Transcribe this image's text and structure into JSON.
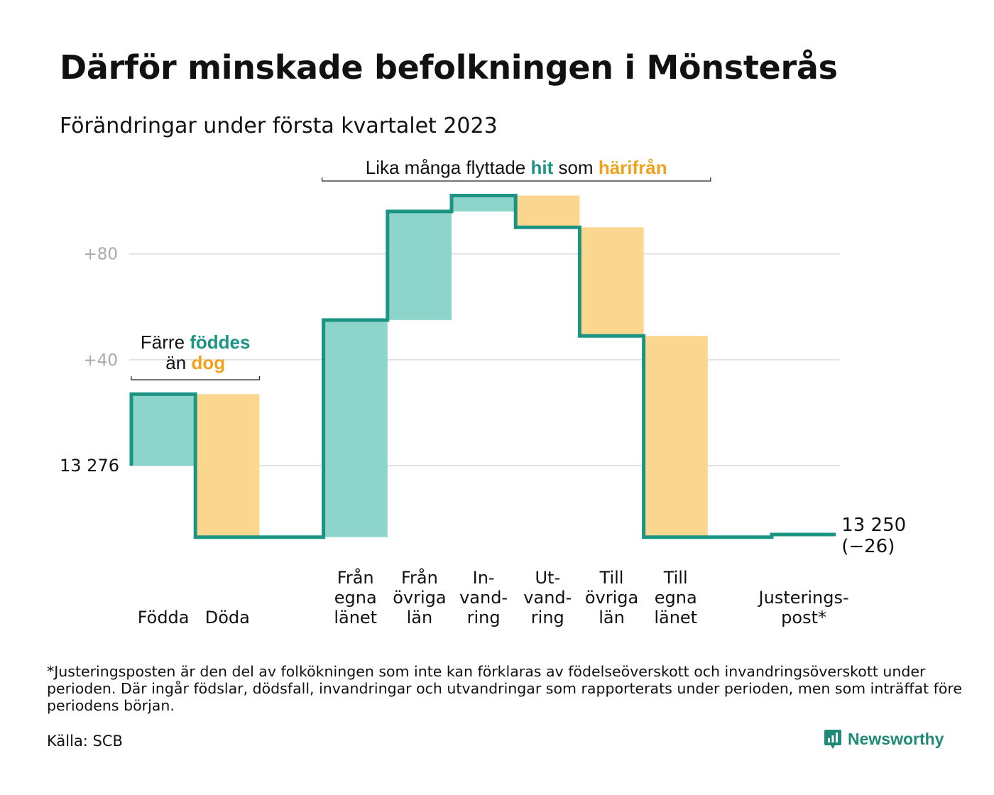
{
  "title": "Därför minskade befolkningen i Mönsterås",
  "subtitle": "Förändringar under första kvartalet 2023",
  "footnote": "*Justeringsposten är den del av folkökningen som inte kan förklaras av födelseöverskott och invandringsöverskott under perioden. Där ingår födslar, dödsfall, invandringar och utvandringar som rapporterats under perioden, men som inträffat före periodens början.",
  "source": "Källa: SCB",
  "brand": {
    "name": "Newsworthy",
    "icon": "newsworthy-logo-icon"
  },
  "colors": {
    "increase": "#8dd5cb",
    "decrease": "#fbd68e",
    "line": "#1b9483",
    "teal_text": "#1b9483",
    "orange_text": "#f0a21c",
    "grid": "#e2e2e2",
    "tick": "#aaaaaa"
  },
  "annotations": {
    "births_deaths": {
      "line1_pre": "Färre ",
      "line1_hl": "föddes",
      "line2_pre": "än ",
      "line2_hl": "dog"
    },
    "migration": {
      "pre": "Lika många flyttade ",
      "hl1": "hit",
      "mid": " som ",
      "hl2": "härifrån"
    }
  },
  "chart_data": {
    "type": "waterfall",
    "start_value": 13276,
    "start_label": "13 276",
    "end_label_value": "13 250",
    "end_label_change": "(−26)",
    "y_axis": {
      "ticks": [
        {
          "value": 80,
          "label": "+80"
        },
        {
          "value": 40,
          "label": "+40"
        }
      ],
      "range": [
        -27,
        103
      ],
      "grid": true
    },
    "steps": [
      {
        "label": [
          "Födda"
        ],
        "change": 27,
        "kind": "increase"
      },
      {
        "label": [
          "Döda"
        ],
        "change": -54,
        "kind": "decrease"
      },
      {
        "label": [],
        "change": 0,
        "kind": "gap"
      },
      {
        "label": [
          "Från",
          "egna",
          "länet"
        ],
        "change": 82,
        "kind": "increase"
      },
      {
        "label": [
          "Från",
          "övriga",
          "län"
        ],
        "change": 41,
        "kind": "increase"
      },
      {
        "label": [
          "In-",
          "vand-",
          "ring"
        ],
        "change": 6,
        "kind": "increase"
      },
      {
        "label": [
          "Ut-",
          "vand-",
          "ring"
        ],
        "change": -12,
        "kind": "decrease"
      },
      {
        "label": [
          "Till",
          "övriga",
          "län"
        ],
        "change": -41,
        "kind": "decrease"
      },
      {
        "label": [
          "Till",
          "egna",
          "länet"
        ],
        "change": -76,
        "kind": "decrease"
      },
      {
        "label": [],
        "change": 0,
        "kind": "gap"
      },
      {
        "label": [
          "Justerings-",
          "post*"
        ],
        "change": 1,
        "kind": "adjust"
      }
    ]
  }
}
